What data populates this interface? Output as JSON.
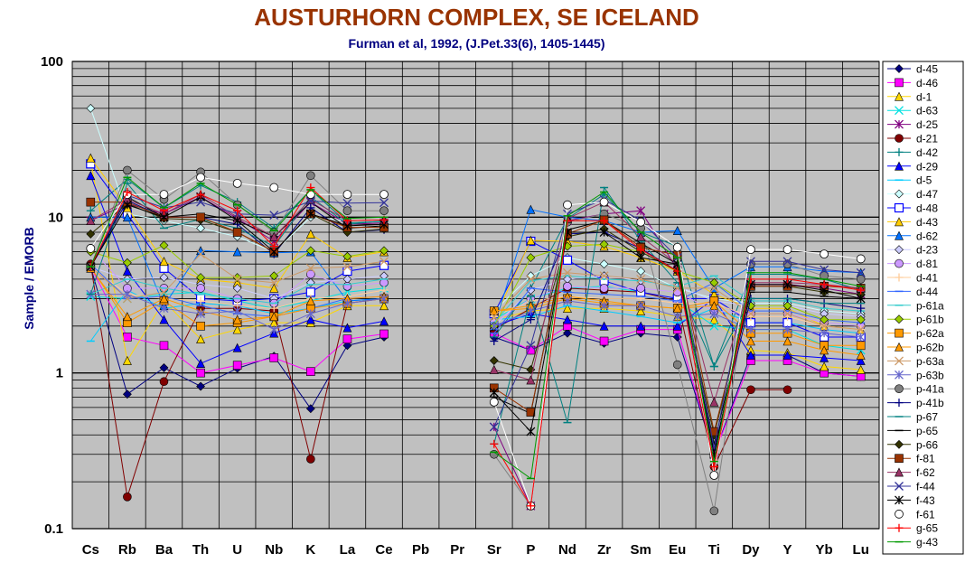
{
  "chart_data": {
    "type": "line",
    "title": "AUSTURHORN COMPLEX, SE ICELAND",
    "subtitle": "Furman et al, 1992, (J.Pet.33(6), 1405-1445)",
    "ylabel": "Sample / EMORB",
    "xlabel": "",
    "yscale": "log",
    "ylim": [
      0.1,
      100
    ],
    "ytick_labels": [
      "0.1",
      "1",
      "10",
      "100"
    ],
    "categories": [
      "Cs",
      "Rb",
      "Ba",
      "Th",
      "U",
      "Nb",
      "K",
      "La",
      "Ce",
      "Pb",
      "Pr",
      "Sr",
      "P",
      "Nd",
      "Zr",
      "Sm",
      "Eu",
      "Ti",
      "Dy",
      "Y",
      "Yb",
      "Lu"
    ],
    "grid": true,
    "legend_position": "right",
    "plot_background": "#c0c0c0",
    "series": [
      {
        "name": "d-45",
        "color": "#000080",
        "marker": "diamond",
        "values": [
          4.8,
          0.73,
          1.08,
          0.82,
          1.07,
          1.28,
          0.59,
          1.5,
          1.7,
          null,
          null,
          1.7,
          1.4,
          1.8,
          1.55,
          1.8,
          1.7,
          0.3,
          1.3,
          1.3,
          1.0,
          0.95
        ]
      },
      {
        "name": "d-46",
        "color": "#ff00ff",
        "marker": "square",
        "values": [
          4.8,
          1.7,
          1.5,
          1.0,
          1.12,
          1.25,
          1.02,
          1.65,
          1.78,
          null,
          null,
          1.8,
          1.4,
          2.0,
          1.6,
          1.9,
          1.9,
          0.3,
          1.2,
          1.2,
          1.0,
          0.95
        ]
      },
      {
        "name": "d-1",
        "color": "#ffd700",
        "marker": "triangle",
        "values": [
          23,
          1.2,
          2.9,
          1.65,
          1.9,
          2.1,
          2.1,
          2.7,
          2.7,
          null,
          null,
          2.2,
          2.5,
          2.6,
          2.6,
          2.5,
          2.3,
          2.2,
          1.4,
          1.35,
          1.1,
          1.05
        ]
      },
      {
        "name": "d-63",
        "color": "#00e0e0",
        "marker": "x",
        "values": [
          3.1,
          3.0,
          3.2,
          3.3,
          2.9,
          2.6,
          2.9,
          3.3,
          3.5,
          null,
          null,
          2.2,
          3.0,
          3.5,
          3.6,
          3.3,
          2.9,
          2.0,
          1.9,
          1.9,
          1.5,
          1.4
        ]
      },
      {
        "name": "d-25",
        "color": "#800080",
        "marker": "star",
        "values": [
          9.5,
          12.2,
          10.5,
          13.5,
          9.8,
          7.0,
          12.5,
          9.0,
          9.2,
          null,
          null,
          0.45,
          0.14,
          9.5,
          10.5,
          11,
          4.6,
          0.3,
          3.7,
          3.7,
          3.5,
          3.2
        ]
      },
      {
        "name": "d-21",
        "color": "#800000",
        "marker": "circle",
        "values": [
          5.0,
          0.16,
          0.88,
          2.6,
          2.6,
          2.5,
          0.28,
          2.8,
          3.0,
          null,
          null,
          1.9,
          2.6,
          3.5,
          3.4,
          3.3,
          2.9,
          0.25,
          0.78,
          0.78,
          null,
          null
        ]
      },
      {
        "name": "d-42",
        "color": "#008080",
        "marker": "plus",
        "values": [
          11,
          17.5,
          11.5,
          16,
          12.5,
          8.5,
          15,
          9.2,
          9.4,
          null,
          null,
          1.7,
          3.5,
          9.8,
          14,
          8,
          6.5,
          1.1,
          4.3,
          4.3,
          4.0,
          3.4
        ]
      },
      {
        "name": "d-29",
        "color": "#0000ff",
        "marker": "triangle",
        "values": [
          18.5,
          4.5,
          2.2,
          1.15,
          1.45,
          1.8,
          2.2,
          1.95,
          2.15,
          null,
          null,
          2.0,
          2.4,
          2.2,
          2.0,
          2.0,
          2.0,
          3.0,
          1.3,
          1.3,
          1.25,
          1.2
        ]
      },
      {
        "name": "d-5",
        "color": "#00ccff",
        "marker": "dash",
        "values": [
          1.6,
          3.4,
          2.6,
          2.8,
          2.7,
          2.4,
          2.6,
          2.9,
          3.0,
          null,
          null,
          2.2,
          2.3,
          2.7,
          2.5,
          2.3,
          2.1,
          2.6,
          2.1,
          2.1,
          1.9,
          1.8
        ]
      },
      {
        "name": "d-47",
        "color": "#ccffff",
        "marker": "diamond",
        "values": [
          50,
          10.5,
          9.5,
          8.5,
          7.5,
          6.0,
          10,
          9.5,
          9.5,
          null,
          null,
          2.5,
          4.2,
          5.5,
          5.0,
          4.5,
          3.5,
          3.0,
          2.8,
          2.8,
          2.5,
          2.4
        ]
      },
      {
        "name": "d-48",
        "color": "#0000ff",
        "marker": "square_open",
        "values": [
          22,
          10.5,
          4.7,
          3.0,
          2.9,
          3.0,
          3.3,
          4.5,
          4.9,
          null,
          null,
          2.4,
          7.0,
          5.3,
          3.9,
          3.3,
          3.0,
          3.0,
          2.1,
          2.1,
          1.7,
          1.7
        ]
      },
      {
        "name": "d-43",
        "color": "#ffcc00",
        "marker": "triangle",
        "values": [
          24,
          11.5,
          5.2,
          4.0,
          3.8,
          3.5,
          7.8,
          5.5,
          6.0,
          null,
          null,
          2.2,
          7.1,
          7.0,
          6.5,
          5.5,
          4.5,
          3.2,
          2.6,
          2.6,
          2.0,
          1.9
        ]
      },
      {
        "name": "d-62",
        "color": "#0070ff",
        "marker": "triangle",
        "values": [
          10,
          10,
          2.7,
          6.1,
          6.0,
          5.9,
          6.0,
          2.9,
          3.0,
          null,
          null,
          2.0,
          11.2,
          10,
          9.5,
          8,
          8.2,
          3.5,
          4.8,
          4.8,
          4.5,
          4.4
        ]
      },
      {
        "name": "d-23",
        "color": "#ccccff",
        "marker": "diamond",
        "values": [
          4.8,
          4.0,
          4.1,
          3.7,
          3.5,
          3.0,
          3.8,
          4.0,
          4.2,
          null,
          null,
          2.0,
          3.4,
          4.0,
          4.2,
          3.9,
          3.6,
          2.9,
          2.7,
          2.7,
          2.4,
          2.3
        ]
      },
      {
        "name": "d-81",
        "color": "#cc99ff",
        "marker": "circle",
        "values": [
          6.3,
          3.5,
          3.5,
          3.5,
          3.0,
          2.8,
          4.3,
          3.6,
          3.8,
          null,
          null,
          2.1,
          3.0,
          3.6,
          3.5,
          3.5,
          3.3,
          2.5,
          2.4,
          2.4,
          2.1,
          2.0
        ]
      },
      {
        "name": "d-41",
        "color": "#ffcc99",
        "marker": "plus",
        "values": [
          4.8,
          3.2,
          3.0,
          2.9,
          2.7,
          2.6,
          3.0,
          3.1,
          3.4,
          null,
          null,
          2.3,
          2.9,
          3.1,
          3.0,
          3.0,
          2.8,
          2.8,
          2.3,
          2.3,
          2.0,
          1.9
        ]
      },
      {
        "name": "d-44",
        "color": "#3366ff",
        "marker": "dash",
        "values": [
          5.0,
          3.0,
          3.1,
          2.7,
          2.4,
          2.3,
          2.6,
          3.0,
          3.1,
          null,
          null,
          1.8,
          3.5,
          3.3,
          3.2,
          3.1,
          2.9,
          3.8,
          2.5,
          2.5,
          2.2,
          2.1
        ]
      },
      {
        "name": "p-61a",
        "color": "#33cccc",
        "marker": "dash",
        "values": [
          3.2,
          4.0,
          3.5,
          3.2,
          3.0,
          2.8,
          3.7,
          3.7,
          4.0,
          null,
          null,
          2.1,
          3.9,
          4.2,
          4.0,
          3.9,
          3.6,
          4.2,
          2.9,
          2.9,
          2.6,
          2.5
        ]
      },
      {
        "name": "p-61b",
        "color": "#99cc00",
        "marker": "diamond",
        "values": [
          6.0,
          5.1,
          6.6,
          4.1,
          4.1,
          4.2,
          6.1,
          5.6,
          6.1,
          null,
          null,
          2.0,
          5.5,
          6.5,
          6.7,
          6.0,
          4.5,
          3.8,
          2.7,
          2.7,
          2.2,
          2.2
        ]
      },
      {
        "name": "p-62a",
        "color": "#ff9900",
        "marker": "square",
        "values": [
          4.8,
          2.1,
          2.9,
          2.0,
          2.1,
          2.3,
          2.6,
          2.8,
          3.0,
          null,
          null,
          2.5,
          2.6,
          3.0,
          2.8,
          2.7,
          2.6,
          2.9,
          1.8,
          1.8,
          1.5,
          1.5
        ]
      },
      {
        "name": "p-62b",
        "color": "#ff9900",
        "marker": "triangle",
        "values": [
          4.7,
          2.3,
          3.0,
          2.5,
          2.2,
          2.3,
          2.9,
          3.0,
          3.1,
          null,
          null,
          2.5,
          2.7,
          3.1,
          2.9,
          2.7,
          2.6,
          2.7,
          1.6,
          1.6,
          1.4,
          1.3
        ]
      },
      {
        "name": "p-63a",
        "color": "#cc9966",
        "marker": "x",
        "values": [
          4.8,
          3.0,
          3.3,
          5.8,
          4.0,
          3.8,
          4.7,
          4.8,
          5.2,
          null,
          null,
          2.3,
          4.0,
          4.4,
          4.2,
          4.0,
          3.5,
          3.5,
          2.4,
          2.4,
          2.0,
          1.9
        ]
      },
      {
        "name": "p-63b",
        "color": "#6666cc",
        "marker": "star",
        "values": [
          3.2,
          3.2,
          2.6,
          2.4,
          2.5,
          1.9,
          2.4,
          2.8,
          3.0,
          null,
          null,
          2.0,
          2.5,
          2.9,
          2.7,
          2.7,
          2.3,
          2.4,
          1.9,
          1.9,
          1.8,
          1.7
        ]
      },
      {
        "name": "p-41a",
        "color": "#808080",
        "marker": "circle",
        "values": [
          4.8,
          20,
          13,
          19.5,
          12,
          8,
          18.5,
          11,
          11,
          null,
          null,
          0.3,
          0.14,
          9.3,
          10.5,
          8.5,
          1.13,
          0.13,
          5.0,
          5.0,
          4.2,
          4.0
        ]
      },
      {
        "name": "p-41b",
        "color": "#000080",
        "marker": "plus",
        "values": [
          4.8,
          12.8,
          10,
          10,
          9.0,
          5.8,
          11.5,
          8.0,
          8.3,
          null,
          null,
          1.6,
          2.2,
          7.8,
          8.0,
          6.3,
          4.5,
          0.32,
          3.0,
          3.0,
          2.8,
          2.6
        ]
      },
      {
        "name": "p-67",
        "color": "#008080",
        "marker": "dash",
        "values": [
          3.2,
          16.5,
          8.5,
          9.7,
          8.5,
          6.5,
          13.5,
          9.0,
          9.5,
          null,
          null,
          0.35,
          3.1,
          0.48,
          15.5,
          7.0,
          3.8,
          1.1,
          3.0,
          3.0,
          2.8,
          2.8
        ]
      },
      {
        "name": "p-65",
        "color": "#000000",
        "marker": "dash",
        "values": [
          4.8,
          13.5,
          10,
          10.5,
          9.5,
          7.5,
          12.5,
          8.5,
          8.8,
          null,
          null,
          0.7,
          0.55,
          8.3,
          9.5,
          6.8,
          5.0,
          0.35,
          3.3,
          3.3,
          3.1,
          3.0
        ]
      },
      {
        "name": "p-66",
        "color": "#333300",
        "marker": "diamond",
        "values": [
          7.8,
          12.2,
          9.8,
          9.6,
          8.0,
          6.0,
          10.5,
          8.0,
          8.4,
          null,
          null,
          1.2,
          1.05,
          7.5,
          8.4,
          6.0,
          4.5,
          0.4,
          3.6,
          3.6,
          3.3,
          3.2
        ]
      },
      {
        "name": "f-81",
        "color": "#993300",
        "marker": "square",
        "values": [
          12.5,
          12.5,
          10,
          10,
          8.0,
          6.0,
          10.5,
          8.6,
          8.6,
          null,
          null,
          0.8,
          0.56,
          7.8,
          9.6,
          6.4,
          5.7,
          0.42,
          3.6,
          3.6,
          3.6,
          3.5
        ]
      },
      {
        "name": "f-62",
        "color": "#993366",
        "marker": "triangle",
        "values": [
          9.5,
          13,
          10.5,
          14,
          10,
          7.5,
          13,
          9.5,
          9.6,
          null,
          null,
          1.05,
          0.9,
          9.8,
          12.5,
          7.5,
          5.0,
          0.65,
          3.8,
          3.8,
          3.7,
          3.5
        ]
      },
      {
        "name": "f-44",
        "color": "#333399",
        "marker": "x",
        "values": [
          4.8,
          13.8,
          11.5,
          12.5,
          10.5,
          10.3,
          12.7,
          12.3,
          12.4,
          null,
          null,
          0.45,
          1.5,
          10.5,
          13,
          9.5,
          5.5,
          0.33,
          5.2,
          5.2,
          4.6,
          4.4
        ]
      },
      {
        "name": "f-43",
        "color": "#000000",
        "marker": "star",
        "values": [
          4.8,
          12,
          10,
          13.5,
          9.5,
          6.0,
          10.5,
          8.8,
          9.0,
          null,
          null,
          0.75,
          0.42,
          8.0,
          8.0,
          5.5,
          5.0,
          0.3,
          3.7,
          3.7,
          3.4,
          3.0
        ]
      },
      {
        "name": "f-61",
        "color": "#ffffff",
        "marker": "circle_open",
        "values": [
          6.3,
          14,
          14,
          18,
          16.5,
          15.5,
          14,
          14,
          14,
          null,
          null,
          0.65,
          0.14,
          12,
          12.5,
          9.3,
          6.4,
          0.22,
          6.2,
          6.2,
          5.8,
          5.4
        ]
      },
      {
        "name": "g-65",
        "color": "#ff0000",
        "marker": "plus",
        "values": [
          4.8,
          14.5,
          11,
          14,
          11,
          6.5,
          15.5,
          9.5,
          9.6,
          null,
          null,
          0.35,
          0.14,
          9.5,
          9.5,
          6.2,
          4.5,
          0.25,
          4.0,
          4.0,
          3.7,
          3.4
        ]
      },
      {
        "name": "g-43",
        "color": "#009900",
        "marker": "dash",
        "values": [
          4.8,
          18,
          11.5,
          16.5,
          12,
          8.2,
          15,
          9.8,
          10,
          null,
          null,
          0.31,
          0.21,
          10.2,
          14.5,
          8.0,
          5.5,
          0.27,
          4.4,
          4.4,
          4.0,
          3.6
        ]
      }
    ]
  }
}
